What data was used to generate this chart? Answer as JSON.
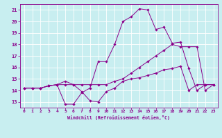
{
  "xlabel": "Windchill (Refroidissement éolien,°C)",
  "bg_color": "#c8eef0",
  "line_color": "#8b008b",
  "grid_color": "#ffffff",
  "xlim": [
    -0.5,
    23.5
  ],
  "ylim": [
    12.5,
    21.5
  ],
  "yticks": [
    13,
    14,
    15,
    16,
    17,
    18,
    19,
    20,
    21
  ],
  "xticks": [
    0,
    1,
    2,
    3,
    4,
    5,
    6,
    7,
    8,
    9,
    10,
    11,
    12,
    13,
    14,
    15,
    16,
    17,
    18,
    19,
    20,
    21,
    22,
    23
  ],
  "series": [
    {
      "x": [
        0,
        1,
        2,
        3,
        4,
        5,
        6,
        7,
        8,
        9,
        10,
        11,
        12,
        13,
        14,
        15,
        16,
        17,
        18,
        19,
        20,
        21,
        22,
        23
      ],
      "y": [
        14.2,
        14.2,
        14.2,
        14.4,
        14.5,
        14.8,
        14.5,
        13.9,
        13.1,
        13.0,
        13.9,
        14.2,
        14.8,
        15.0,
        15.1,
        15.3,
        15.5,
        15.8,
        15.9,
        16.1,
        14.0,
        14.5,
        14.5,
        14.5
      ]
    },
    {
      "x": [
        0,
        1,
        2,
        3,
        4,
        5,
        6,
        7,
        8,
        9,
        10,
        11,
        12,
        13,
        14,
        15,
        16,
        17,
        18,
        19,
        20,
        21,
        22,
        23
      ],
      "y": [
        14.2,
        14.2,
        14.2,
        14.4,
        14.5,
        12.8,
        12.8,
        13.8,
        14.2,
        16.5,
        16.5,
        18.0,
        20.0,
        20.4,
        21.1,
        21.0,
        19.3,
        19.5,
        18.1,
        18.2,
        15.9,
        14.0,
        14.5,
        14.5
      ]
    },
    {
      "x": [
        0,
        1,
        2,
        3,
        4,
        5,
        6,
        7,
        8,
        9,
        10,
        11,
        12,
        13,
        14,
        15,
        16,
        17,
        18,
        19,
        20,
        21,
        22,
        23
      ],
      "y": [
        14.2,
        14.2,
        14.2,
        14.4,
        14.5,
        14.5,
        14.5,
        14.5,
        14.5,
        14.5,
        14.5,
        14.8,
        15.0,
        15.5,
        16.0,
        16.5,
        17.0,
        17.5,
        18.0,
        17.8,
        17.8,
        17.8,
        14.0,
        14.5
      ]
    }
  ]
}
